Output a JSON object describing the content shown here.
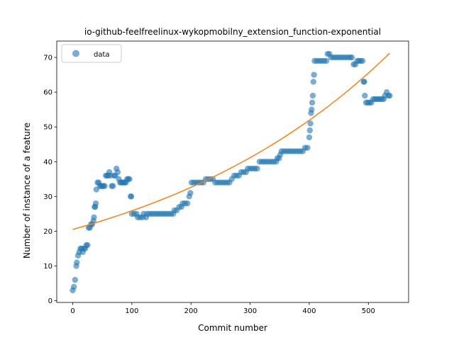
{
  "chart_data": {
    "type": "scatter",
    "title": "io-github-feelfreelinux-wykopmobilny_extension_function-exponential",
    "xlabel": "Commit number",
    "ylabel": "Number of instance of a feature",
    "xlim": [
      -27,
      568
    ],
    "ylim": [
      -0.5,
      74.7
    ],
    "xticks": [
      0,
      100,
      200,
      300,
      400,
      500
    ],
    "yticks": [
      0,
      10,
      20,
      30,
      40,
      50,
      60,
      70
    ],
    "grid": false,
    "legend_position": "upper-left",
    "colors": {
      "data": "#1f77b4",
      "fit": "#ff7f0e"
    },
    "series": [
      {
        "name": "data",
        "kind": "scatter",
        "points": [
          [
            0,
            3
          ],
          [
            2,
            4
          ],
          [
            4,
            6
          ],
          [
            6,
            10
          ],
          [
            7,
            11
          ],
          [
            9,
            13
          ],
          [
            11,
            14
          ],
          [
            13,
            15
          ],
          [
            15,
            15
          ],
          [
            17,
            14
          ],
          [
            19,
            15
          ],
          [
            21,
            15
          ],
          [
            23,
            16
          ],
          [
            25,
            16
          ],
          [
            27,
            21
          ],
          [
            29,
            21
          ],
          [
            31,
            22
          ],
          [
            33,
            22
          ],
          [
            35,
            23
          ],
          [
            36,
            24
          ],
          [
            37,
            27
          ],
          [
            38,
            27
          ],
          [
            39,
            28
          ],
          [
            40,
            32
          ],
          [
            42,
            34
          ],
          [
            44,
            34
          ],
          [
            46,
            33
          ],
          [
            48,
            33
          ],
          [
            50,
            33
          ],
          [
            52,
            33
          ],
          [
            54,
            33
          ],
          [
            56,
            36
          ],
          [
            58,
            36
          ],
          [
            60,
            36
          ],
          [
            62,
            37
          ],
          [
            64,
            36
          ],
          [
            66,
            33
          ],
          [
            68,
            33
          ],
          [
            70,
            36
          ],
          [
            72,
            36
          ],
          [
            74,
            38
          ],
          [
            76,
            37
          ],
          [
            78,
            35
          ],
          [
            80,
            34
          ],
          [
            82,
            34
          ],
          [
            84,
            34
          ],
          [
            86,
            34
          ],
          [
            88,
            34
          ],
          [
            90,
            34
          ],
          [
            92,
            35
          ],
          [
            94,
            35
          ],
          [
            96,
            35
          ],
          [
            98,
            30
          ],
          [
            99,
            30
          ],
          [
            100,
            25
          ],
          [
            104,
            25
          ],
          [
            108,
            25
          ],
          [
            110,
            24
          ],
          [
            114,
            24
          ],
          [
            118,
            24
          ],
          [
            120,
            25
          ],
          [
            124,
            24
          ],
          [
            126,
            25
          ],
          [
            130,
            25
          ],
          [
            134,
            25
          ],
          [
            138,
            25
          ],
          [
            142,
            25
          ],
          [
            146,
            25
          ],
          [
            150,
            25
          ],
          [
            154,
            25
          ],
          [
            158,
            25
          ],
          [
            162,
            25
          ],
          [
            166,
            25
          ],
          [
            170,
            25
          ],
          [
            172,
            26
          ],
          [
            176,
            26
          ],
          [
            180,
            27
          ],
          [
            184,
            27
          ],
          [
            186,
            28
          ],
          [
            190,
            28
          ],
          [
            194,
            28
          ],
          [
            197,
            30
          ],
          [
            199,
            31
          ],
          [
            201,
            34
          ],
          [
            205,
            34
          ],
          [
            209,
            34
          ],
          [
            213,
            34
          ],
          [
            217,
            34
          ],
          [
            221,
            34
          ],
          [
            225,
            35
          ],
          [
            229,
            35
          ],
          [
            233,
            35
          ],
          [
            237,
            35
          ],
          [
            241,
            34
          ],
          [
            245,
            34
          ],
          [
            249,
            34
          ],
          [
            253,
            34
          ],
          [
            257,
            34
          ],
          [
            261,
            34
          ],
          [
            265,
            34
          ],
          [
            269,
            35
          ],
          [
            273,
            36
          ],
          [
            277,
            36
          ],
          [
            281,
            36
          ],
          [
            285,
            37
          ],
          [
            289,
            37
          ],
          [
            293,
            37
          ],
          [
            296,
            38
          ],
          [
            300,
            38
          ],
          [
            304,
            38
          ],
          [
            308,
            38
          ],
          [
            312,
            38
          ],
          [
            316,
            40
          ],
          [
            320,
            40
          ],
          [
            324,
            40
          ],
          [
            328,
            40
          ],
          [
            332,
            40
          ],
          [
            336,
            40
          ],
          [
            340,
            40
          ],
          [
            344,
            40
          ],
          [
            346,
            41
          ],
          [
            349,
            41
          ],
          [
            351,
            42
          ],
          [
            353,
            43
          ],
          [
            357,
            43
          ],
          [
            361,
            43
          ],
          [
            365,
            43
          ],
          [
            369,
            43
          ],
          [
            373,
            43
          ],
          [
            377,
            43
          ],
          [
            381,
            43
          ],
          [
            385,
            43
          ],
          [
            389,
            43
          ],
          [
            393,
            44
          ],
          [
            397,
            44
          ],
          [
            400,
            47
          ],
          [
            401,
            49
          ],
          [
            402,
            51
          ],
          [
            403,
            54
          ],
          [
            404,
            55
          ],
          [
            405,
            57
          ],
          [
            406,
            59
          ],
          [
            407,
            63
          ],
          [
            408,
            65
          ],
          [
            409,
            69
          ],
          [
            413,
            69
          ],
          [
            417,
            69
          ],
          [
            421,
            69
          ],
          [
            425,
            69
          ],
          [
            429,
            69
          ],
          [
            431,
            71
          ],
          [
            434,
            71
          ],
          [
            437,
            70
          ],
          [
            441,
            70
          ],
          [
            445,
            70
          ],
          [
            449,
            70
          ],
          [
            453,
            70
          ],
          [
            457,
            70
          ],
          [
            461,
            70
          ],
          [
            465,
            70
          ],
          [
            469,
            70
          ],
          [
            472,
            70
          ],
          [
            475,
            68
          ],
          [
            478,
            68
          ],
          [
            481,
            69
          ],
          [
            484,
            69
          ],
          [
            487,
            69
          ],
          [
            490,
            69
          ],
          [
            492,
            63
          ],
          [
            493,
            63
          ],
          [
            494,
            59
          ],
          [
            496,
            57
          ],
          [
            499,
            57
          ],
          [
            502,
            57
          ],
          [
            505,
            57
          ],
          [
            508,
            58
          ],
          [
            511,
            58
          ],
          [
            514,
            58
          ],
          [
            517,
            58
          ],
          [
            520,
            58
          ],
          [
            523,
            58
          ],
          [
            526,
            58
          ],
          [
            528,
            59
          ],
          [
            531,
            60
          ],
          [
            534,
            59
          ],
          [
            536,
            59
          ]
        ]
      },
      {
        "name": "",
        "kind": "line",
        "fit": {
          "model": "exponential",
          "x_range": [
            0,
            536
          ],
          "y_start": 20.5,
          "y_end": 71.2
        }
      }
    ]
  }
}
